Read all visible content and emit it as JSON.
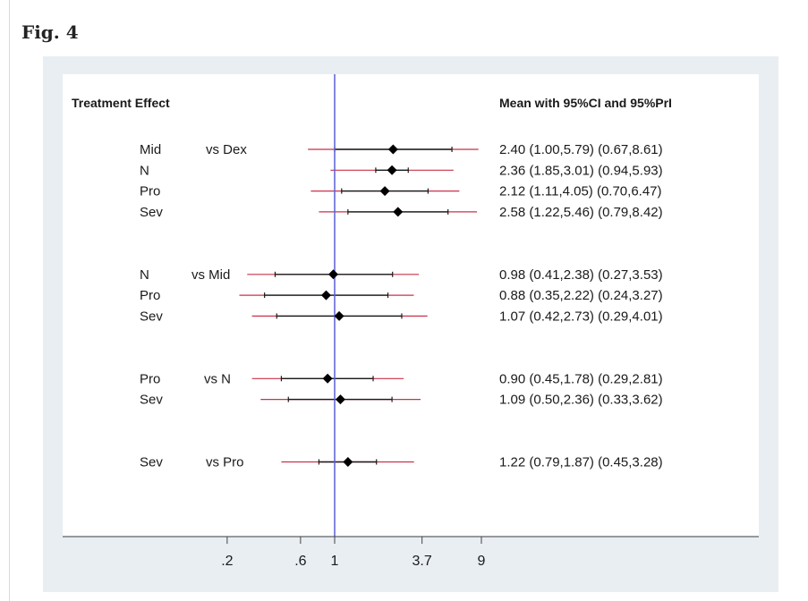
{
  "figure": {
    "title": "Fig. 4"
  },
  "chart_data": {
    "type": "forest",
    "title": "",
    "header_left": "Treatment Effect",
    "header_right": "Mean with 95%CI and 95%PrI",
    "x_scale": "log",
    "xticks": [
      0.2,
      0.6,
      1,
      3.7,
      9
    ],
    "xtick_labels": [
      ".2",
      ".6",
      "1",
      "3.7",
      "9"
    ],
    "reference_line": 1,
    "colors": {
      "ci": "#1a1a1a",
      "pri": "#c8324a",
      "ref": "#5a5fd6",
      "point": "#000000"
    },
    "groups": [
      {
        "comparator": "vs Dex",
        "rows": [
          {
            "treatment": "Mid",
            "mean": 2.4,
            "ci": [
              1.0,
              5.79
            ],
            "pri": [
              0.67,
              8.61
            ],
            "label": "2.40 (1.00,5.79)  (0.67,8.61)"
          },
          {
            "treatment": "N",
            "mean": 2.36,
            "ci": [
              1.85,
              3.01
            ],
            "pri": [
              0.94,
              5.93
            ],
            "label": "2.36 (1.85,3.01)  (0.94,5.93)"
          },
          {
            "treatment": "Pro",
            "mean": 2.12,
            "ci": [
              1.11,
              4.05
            ],
            "pri": [
              0.7,
              6.47
            ],
            "label": "2.12 (1.11,4.05)  (0.70,6.47)"
          },
          {
            "treatment": "Sev",
            "mean": 2.58,
            "ci": [
              1.22,
              5.46
            ],
            "pri": [
              0.79,
              8.42
            ],
            "label": "2.58 (1.22,5.46)  (0.79,8.42)"
          }
        ]
      },
      {
        "comparator": "vs Mid",
        "rows": [
          {
            "treatment": "N",
            "mean": 0.98,
            "ci": [
              0.41,
              2.38
            ],
            "pri": [
              0.27,
              3.53
            ],
            "label": "0.98 (0.41,2.38)  (0.27,3.53)"
          },
          {
            "treatment": "Pro",
            "mean": 0.88,
            "ci": [
              0.35,
              2.22
            ],
            "pri": [
              0.24,
              3.27
            ],
            "label": "0.88 (0.35,2.22)  (0.24,3.27)"
          },
          {
            "treatment": "Sev",
            "mean": 1.07,
            "ci": [
              0.42,
              2.73
            ],
            "pri": [
              0.29,
              4.01
            ],
            "label": "1.07 (0.42,2.73)  (0.29,4.01)"
          }
        ]
      },
      {
        "comparator": "vs N",
        "rows": [
          {
            "treatment": "Pro",
            "mean": 0.9,
            "ci": [
              0.45,
              1.78
            ],
            "pri": [
              0.29,
              2.81
            ],
            "label": "0.90 (0.45,1.78)  (0.29,2.81)"
          },
          {
            "treatment": "Sev",
            "mean": 1.09,
            "ci": [
              0.5,
              2.36
            ],
            "pri": [
              0.33,
              3.62
            ],
            "label": "1.09 (0.50,2.36)  (0.33,3.62)"
          }
        ]
      },
      {
        "comparator": "vs Pro",
        "rows": [
          {
            "treatment": "Sev",
            "mean": 1.22,
            "ci": [
              0.79,
              1.87
            ],
            "pri": [
              0.45,
              3.28
            ],
            "label": "1.22 (0.79,1.87)  (0.45,3.28)"
          }
        ]
      }
    ]
  }
}
